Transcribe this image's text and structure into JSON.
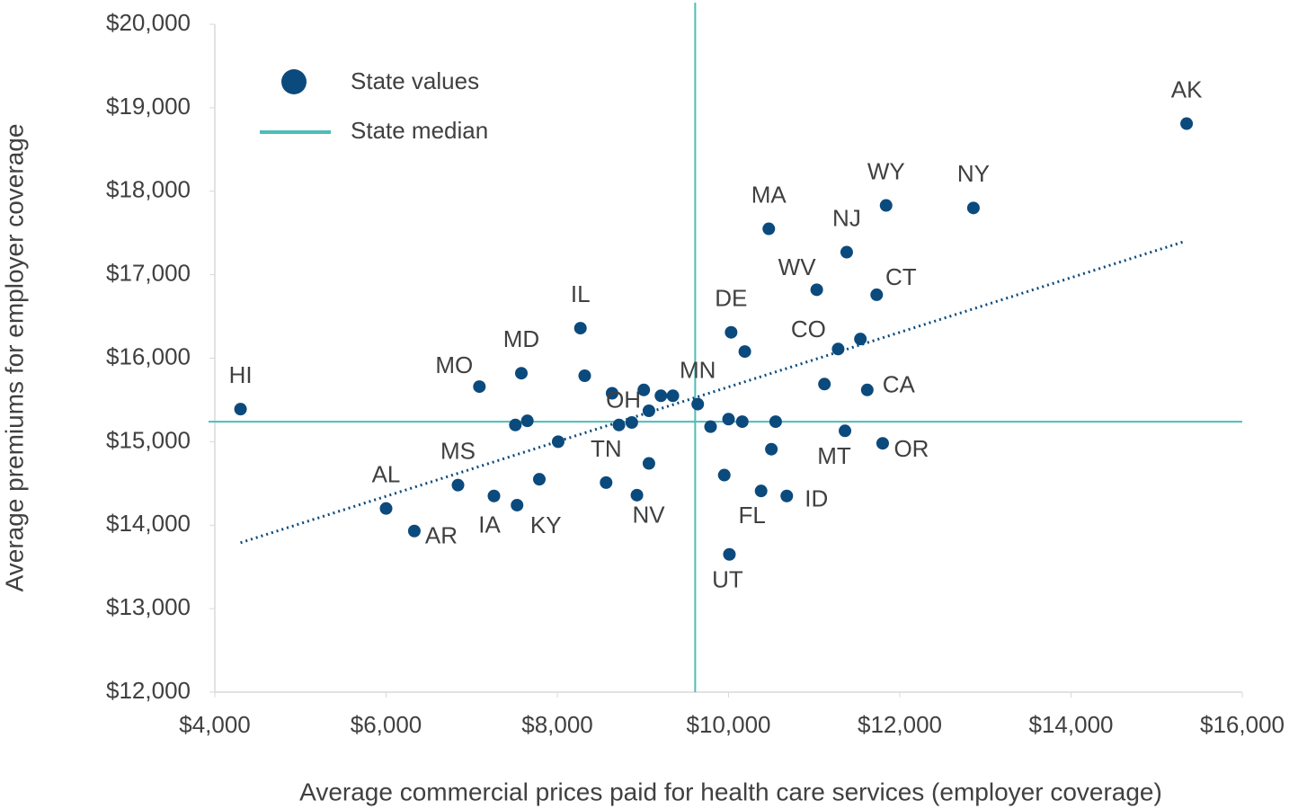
{
  "chart_data": {
    "type": "scatter",
    "x_label": "Average commercial prices paid for health care services (employer coverage)",
    "y_label": "Average premiums for employer coverage",
    "series": [
      {
        "name": "State values",
        "color": "#0b4a7d",
        "x": [
          4300,
          6000,
          6330,
          6840,
          7260,
          7530,
          7090,
          7580,
          8270,
          7510,
          7650,
          7790,
          8010,
          8320,
          8570,
          8640,
          8720,
          8870,
          9010,
          9070,
          9070,
          8930,
          9210,
          9350,
          9640,
          9790,
          9950,
          10000,
          10010,
          10030,
          10160,
          10190,
          10380,
          10470,
          10500,
          10550,
          10680,
          11030,
          11120,
          11280,
          11360,
          11380,
          11540,
          11620,
          11730,
          11800,
          11840,
          12860,
          15350
        ],
        "values": [
          15390,
          14200,
          13930,
          14480,
          14350,
          14240,
          15660,
          15820,
          16360,
          15200,
          15250,
          14550,
          15000,
          15790,
          14510,
          15580,
          15200,
          15230,
          15620,
          15370,
          14740,
          14360,
          15550,
          15550,
          15450,
          15180,
          14600,
          15270,
          13650,
          16310,
          15240,
          16080,
          14410,
          17550,
          14910,
          15240,
          14350,
          16820,
          15690,
          16110,
          15130,
          17270,
          16230,
          15620,
          16760,
          14980,
          17830,
          17800,
          18810
        ],
        "labels": [
          "HI",
          "AL",
          "AR",
          "MS",
          "IA",
          "KY",
          "MO",
          "MD",
          "IL",
          null,
          null,
          null,
          null,
          null,
          "TN",
          null,
          "OH",
          null,
          null,
          null,
          null,
          "NV",
          null,
          null,
          "MN",
          null,
          null,
          null,
          "UT",
          "DE",
          null,
          null,
          "FL",
          "MA",
          null,
          null,
          "ID",
          "WV",
          null,
          "CO",
          "MT",
          "NJ",
          null,
          "CA",
          "CT",
          "OR",
          "WY",
          "NY",
          "AK"
        ]
      }
    ],
    "median": {
      "name": "State median",
      "color": "#4dbdb9",
      "x": 9610,
      "y": 15240
    },
    "trendline": {
      "color": "#0b4a7d",
      "x": [
        4300,
        15330
      ],
      "y": [
        13790,
        17400
      ]
    },
    "xlim": [
      4000,
      16000
    ],
    "xticks": [
      {
        "value": 4000,
        "label": "$4,000"
      },
      {
        "value": 6000,
        "label": "$6,000"
      },
      {
        "value": 8000,
        "label": "$8,000"
      },
      {
        "value": 10000,
        "label": "$10,000"
      },
      {
        "value": 12000,
        "label": "$12,000"
      },
      {
        "value": 14000,
        "label": "$14,000"
      },
      {
        "value": 16000,
        "label": "$16,000"
      }
    ],
    "ylim": [
      12000,
      20000
    ],
    "yticks": [
      {
        "value": 12000,
        "label": "$12,000"
      },
      {
        "value": 13000,
        "label": "$13,000"
      },
      {
        "value": 14000,
        "label": "$14,000"
      },
      {
        "value": 15000,
        "label": "$15,000"
      },
      {
        "value": 16000,
        "label": "$16,000"
      },
      {
        "value": 17000,
        "label": "$17,000"
      },
      {
        "value": 18000,
        "label": "$18,000"
      },
      {
        "value": 19000,
        "label": "$19,000"
      },
      {
        "value": 20000,
        "label": "$20,000"
      }
    ]
  }
}
